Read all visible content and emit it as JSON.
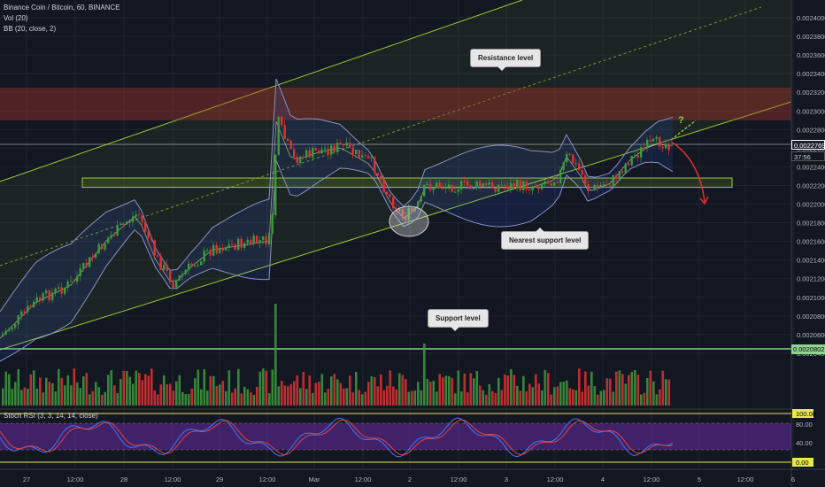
{
  "header": {
    "symbol_line": "Binance Coin / Bitcoin, 60, BINANCE",
    "vol_indicator": "Vol (20)",
    "bb_indicator": "BB (20, close, 2)",
    "stoch_indicator": "Stoch RSI (3, 3, 14, 14, close)"
  },
  "annotations": {
    "resistance": "Resistance level",
    "nearest_support": "Nearest support level",
    "support": "Support level",
    "question": "?"
  },
  "price_axis": {
    "ticks": [
      "0.0024000",
      "0.0023800",
      "0.0023600",
      "0.0023400",
      "0.0023200",
      "0.0023000",
      "0.0022800",
      "0.0022600",
      "0.0022400",
      "0.0022200",
      "0.0022000",
      "0.0021800",
      "0.0021600",
      "0.0021400",
      "0.0021200",
      "0.0021000",
      "0.0020800",
      "0.0020600",
      "0.0020400"
    ],
    "current_price": "0.0022769",
    "countdown": "37:56",
    "support_price": "0.0020802"
  },
  "stoch_axis": {
    "ticks": [
      "100.00",
      "80.00",
      "40.00",
      "0.00"
    ]
  },
  "time_axis": {
    "labels": [
      "27",
      "12:00",
      "28",
      "12:00",
      "29",
      "12:00",
      "Mar",
      "12:00",
      "2",
      "12:00",
      "3",
      "12:00",
      "4",
      "12:00",
      "5",
      "12:00",
      "6"
    ]
  },
  "colors": {
    "background": "#131722",
    "up": "#26a69a",
    "up_candle": "#3d9a3d",
    "down": "#e03131",
    "channel": "#9acd32",
    "resistance_zone": "#c0392b",
    "support_line": "#7cd67c",
    "stoch_k": "#3d7bff",
    "stoch_d": "#e04545",
    "stoch_band": "#7b2fbe"
  },
  "chart_data": {
    "type": "candlestick",
    "title": "Binance Coin / Bitcoin, 60, BINANCE",
    "ylim": [
      0.00202,
      0.00242
    ],
    "key_levels": {
      "resistance_zone": [
        0.00229,
        0.002325
      ],
      "nearest_support_zone": [
        0.002218,
        0.002228
      ],
      "support_level": 0.0020802,
      "current_price": 0.0022769
    },
    "stoch_rsi_levels": [
      100,
      80,
      20,
      0
    ]
  }
}
